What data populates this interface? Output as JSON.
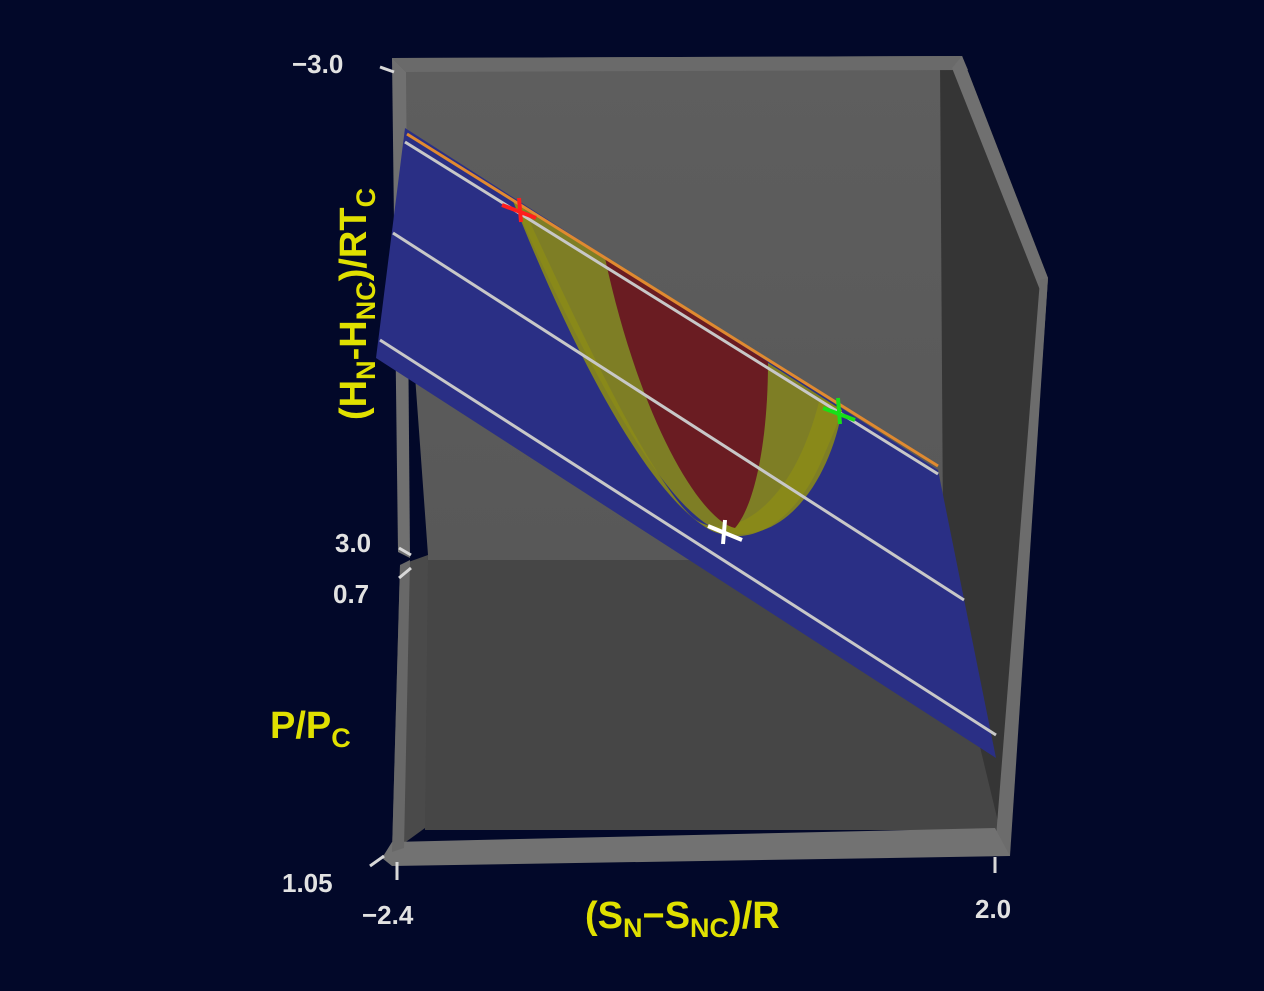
{
  "chart_data": {
    "type": "surface3d",
    "axes": {
      "x": {
        "label_parts": [
          {
            "text": "(S",
            "sub": false
          },
          {
            "text": "N",
            "sub": true
          },
          {
            "text": "−S",
            "sub": false
          },
          {
            "text": "NC",
            "sub": true
          },
          {
            "text": ")/R",
            "sub": false
          }
        ],
        "range": [
          -2.4,
          2.0
        ],
        "ticks": [
          "−2.4",
          "2.0"
        ]
      },
      "y": {
        "label_parts": [
          {
            "text": "P/P",
            "sub": false
          },
          {
            "text": "C",
            "sub": true
          }
        ],
        "range": [
          0.7,
          1.05
        ],
        "ticks": [
          "0.7",
          "1.05"
        ]
      },
      "z": {
        "label_parts": [
          {
            "text": "(H",
            "sub": false
          },
          {
            "text": "N",
            "sub": true
          },
          {
            "text": "-H",
            "sub": false
          },
          {
            "text": "NC",
            "sub": true
          },
          {
            "text": ")/RT",
            "sub": false
          },
          {
            "text": "C",
            "sub": true
          }
        ],
        "range": [
          -3.0,
          3.0
        ],
        "ticks": [
          "−3.0",
          "3.0"
        ]
      }
    },
    "surfaces": [
      {
        "name": "isotherm surface",
        "color": "#2a2f85"
      },
      {
        "name": "two-phase envelope",
        "color": "#8a8a18"
      },
      {
        "name": "unstable region",
        "color": "#6a1c22"
      }
    ],
    "isobar_lines": {
      "color": "#c8c8c8",
      "count": 3
    },
    "tangent_line": {
      "color": "#e08a30"
    },
    "markers": [
      {
        "name": "left-coexistence-point",
        "color": "#ff1e1e"
      },
      {
        "name": "right-coexistence-point",
        "color": "#18e018"
      },
      {
        "name": "critical-point",
        "color": "#ffffff"
      }
    ],
    "box": {
      "back_wall": "#5c5c5c",
      "side_wall": "#333333",
      "floor": "#474747",
      "frame": "#7a7a7a"
    }
  }
}
